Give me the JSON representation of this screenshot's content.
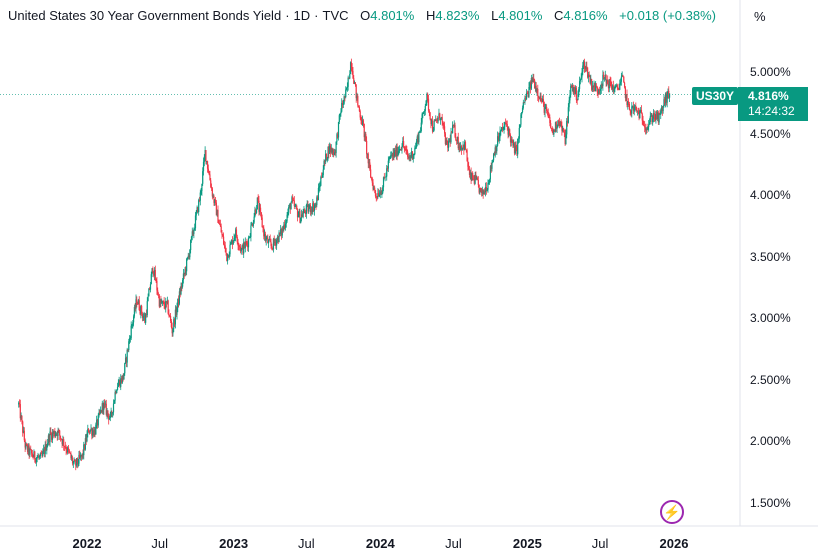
{
  "legend": {
    "title": "United States 30 Year Government Bonds Yield",
    "interval": "1D",
    "source": "TVC",
    "open_label": "O",
    "open": "4.801%",
    "high_label": "H",
    "high": "4.823%",
    "low_label": "L",
    "low": "4.801%",
    "close_label": "C",
    "close": "4.816%",
    "change": "+0.018 (+0.38%)"
  },
  "axis_unit": "%",
  "symbol_tag": "US30Y",
  "price_tag": {
    "price": "4.816%",
    "countdown": "14:24:32"
  },
  "colors": {
    "up": "#089981",
    "down": "#f23645",
    "accent": "#089981",
    "event": "#9c27b0"
  },
  "icons": {
    "event_marker": "lightning-bolt-icon"
  },
  "chart_data": {
    "type": "candlestick",
    "title": "United States 30 Year Government Bonds Yield",
    "ylabel": "%",
    "ylim": [
      1.35,
      5.3
    ],
    "grid": false,
    "last_price": 4.816,
    "y_ticks": [
      {
        "value": 5.0,
        "label": "5.000%"
      },
      {
        "value": 4.5,
        "label": "4.500%"
      },
      {
        "value": 4.0,
        "label": "4.000%"
      },
      {
        "value": 3.5,
        "label": "3.500%"
      },
      {
        "value": 3.0,
        "label": "3.000%"
      },
      {
        "value": 2.5,
        "label": "2.500%"
      },
      {
        "value": 2.0,
        "label": "2.000%"
      },
      {
        "value": 1.5,
        "label": "1.500%"
      }
    ],
    "x_ticks": [
      {
        "date": "2022-01-01",
        "label": "2022",
        "year": true
      },
      {
        "date": "2022-07-01",
        "label": "Jul",
        "year": false
      },
      {
        "date": "2023-01-01",
        "label": "2023",
        "year": true
      },
      {
        "date": "2023-07-01",
        "label": "Jul",
        "year": false
      },
      {
        "date": "2024-01-01",
        "label": "2024",
        "year": true
      },
      {
        "date": "2024-07-01",
        "label": "Jul",
        "year": false
      },
      {
        "date": "2025-01-01",
        "label": "2025",
        "year": true
      },
      {
        "date": "2025-07-01",
        "label": "Jul",
        "year": false
      },
      {
        "date": "2026-01-01",
        "label": "2026",
        "year": true
      }
    ],
    "series": [
      {
        "values": [
          [
            "2021-07-15",
            2.3
          ],
          [
            "2021-08-01",
            1.95
          ],
          [
            "2021-08-20",
            1.88
          ],
          [
            "2021-09-10",
            1.86
          ],
          [
            "2021-09-30",
            2.05
          ],
          [
            "2021-10-20",
            2.08
          ],
          [
            "2021-11-10",
            1.95
          ],
          [
            "2021-12-01",
            1.8
          ],
          [
            "2021-12-20",
            1.88
          ],
          [
            "2022-01-05",
            2.1
          ],
          [
            "2022-01-20",
            2.08
          ],
          [
            "2022-02-10",
            2.3
          ],
          [
            "2022-03-01",
            2.18
          ],
          [
            "2022-03-15",
            2.45
          ],
          [
            "2022-04-01",
            2.52
          ],
          [
            "2022-04-20",
            2.9
          ],
          [
            "2022-05-05",
            3.15
          ],
          [
            "2022-05-25",
            2.98
          ],
          [
            "2022-06-14",
            3.42
          ],
          [
            "2022-07-01",
            3.12
          ],
          [
            "2022-07-20",
            3.1
          ],
          [
            "2022-08-01",
            2.9
          ],
          [
            "2022-08-20",
            3.2
          ],
          [
            "2022-09-10",
            3.5
          ],
          [
            "2022-09-25",
            3.75
          ],
          [
            "2022-10-10",
            4.0
          ],
          [
            "2022-10-22",
            4.35
          ],
          [
            "2022-11-10",
            4.0
          ],
          [
            "2022-12-01",
            3.7
          ],
          [
            "2022-12-15",
            3.5
          ],
          [
            "2023-01-05",
            3.7
          ],
          [
            "2023-01-20",
            3.55
          ],
          [
            "2023-02-05",
            3.62
          ],
          [
            "2023-03-01",
            3.95
          ],
          [
            "2023-03-20",
            3.65
          ],
          [
            "2023-04-05",
            3.58
          ],
          [
            "2023-05-01",
            3.7
          ],
          [
            "2023-05-25",
            3.95
          ],
          [
            "2023-06-15",
            3.82
          ],
          [
            "2023-07-01",
            3.88
          ],
          [
            "2023-07-25",
            3.92
          ],
          [
            "2023-08-10",
            4.2
          ],
          [
            "2023-08-25",
            4.38
          ],
          [
            "2023-09-10",
            4.35
          ],
          [
            "2023-09-25",
            4.7
          ],
          [
            "2023-10-10",
            4.85
          ],
          [
            "2023-10-20",
            5.1
          ],
          [
            "2023-11-05",
            4.75
          ],
          [
            "2023-11-20",
            4.55
          ],
          [
            "2023-12-05",
            4.2
          ],
          [
            "2023-12-20",
            4.0
          ],
          [
            "2024-01-05",
            4.05
          ],
          [
            "2024-01-25",
            4.3
          ],
          [
            "2024-02-10",
            4.35
          ],
          [
            "2024-02-25",
            4.42
          ],
          [
            "2024-03-10",
            4.3
          ],
          [
            "2024-03-25",
            4.35
          ],
          [
            "2024-04-10",
            4.55
          ],
          [
            "2024-04-25",
            4.8
          ],
          [
            "2024-05-10",
            4.55
          ],
          [
            "2024-05-30",
            4.65
          ],
          [
            "2024-06-15",
            4.38
          ],
          [
            "2024-07-01",
            4.55
          ],
          [
            "2024-07-15",
            4.4
          ],
          [
            "2024-07-30",
            4.4
          ],
          [
            "2024-08-10",
            4.15
          ],
          [
            "2024-08-25",
            4.12
          ],
          [
            "2024-09-10",
            4.0
          ],
          [
            "2024-09-25",
            4.1
          ],
          [
            "2024-10-10",
            4.35
          ],
          [
            "2024-10-25",
            4.5
          ],
          [
            "2024-11-10",
            4.58
          ],
          [
            "2024-11-25",
            4.4
          ],
          [
            "2024-12-05",
            4.35
          ],
          [
            "2024-12-20",
            4.72
          ],
          [
            "2025-01-05",
            4.85
          ],
          [
            "2025-01-14",
            4.95
          ],
          [
            "2025-02-01",
            4.8
          ],
          [
            "2025-02-20",
            4.65
          ],
          [
            "2025-03-05",
            4.5
          ],
          [
            "2025-03-20",
            4.62
          ],
          [
            "2025-04-05",
            4.45
          ],
          [
            "2025-04-20",
            4.9
          ],
          [
            "2025-05-05",
            4.8
          ],
          [
            "2025-05-22",
            5.08
          ],
          [
            "2025-06-10",
            4.9
          ],
          [
            "2025-06-25",
            4.85
          ],
          [
            "2025-07-10",
            4.95
          ],
          [
            "2025-07-25",
            4.9
          ],
          [
            "2025-08-10",
            4.85
          ],
          [
            "2025-08-25",
            4.95
          ],
          [
            "2025-09-10",
            4.7
          ],
          [
            "2025-09-25",
            4.7
          ],
          [
            "2025-10-10",
            4.65
          ],
          [
            "2025-10-25",
            4.55
          ],
          [
            "2025-11-10",
            4.65
          ],
          [
            "2025-11-25",
            4.62
          ],
          [
            "2025-12-10",
            4.78
          ],
          [
            "2025-12-22",
            4.82
          ],
          [
            "2025-12-30",
            4.816
          ]
        ]
      }
    ]
  }
}
